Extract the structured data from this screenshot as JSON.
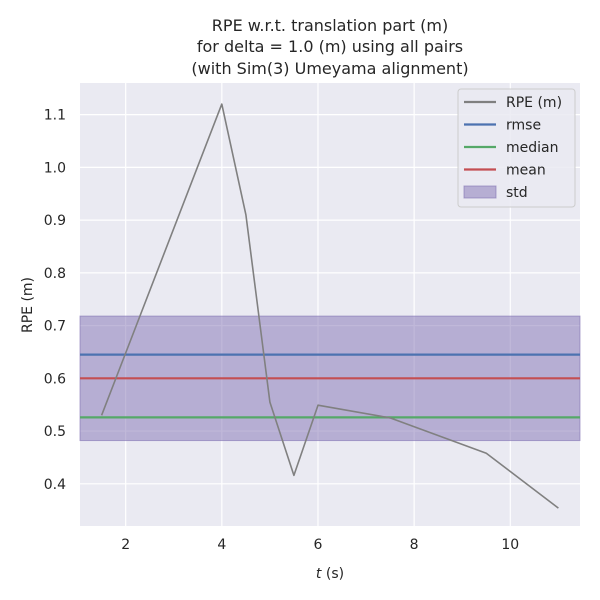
{
  "chart_data": {
    "type": "line",
    "title_lines": [
      "RPE w.r.t. translation part (m)",
      "for delta = 1.0 (m) using all pairs",
      "(with Sim(3) Umeyama alignment)"
    ],
    "xlabel_italic": "t",
    "xlabel_rest": " (s)",
    "ylabel": "RPE (m)",
    "xlim": [
      1.05,
      11.45
    ],
    "ylim": [
      0.32,
      1.16
    ],
    "xticks": [
      2,
      4,
      6,
      8,
      10
    ],
    "yticks": [
      0.4,
      0.5,
      0.6,
      0.7,
      0.8,
      0.9,
      1.0,
      1.1
    ],
    "ytick_labels": [
      "0.4",
      "0.5",
      "0.6",
      "0.7",
      "0.8",
      "0.9",
      "1.0",
      "1.1"
    ],
    "grid": true,
    "legend_position": "top-right",
    "series": [
      {
        "name": "RPE (m)",
        "color": "#808080",
        "x": [
          1.5,
          4.0,
          4.5,
          5.0,
          5.5,
          6.0,
          7.5,
          9.5,
          11.0
        ],
        "y": [
          0.53,
          1.12,
          0.91,
          0.555,
          0.416,
          0.549,
          0.525,
          0.458,
          0.354
        ]
      }
    ],
    "stats": {
      "rmse": 0.645,
      "median": 0.526,
      "mean": 0.6,
      "std_band": [
        0.482,
        0.718
      ]
    },
    "legend": [
      {
        "label": "RPE (m)",
        "kind": "line",
        "color": "#808080"
      },
      {
        "label": "rmse",
        "kind": "line",
        "color": "#4c72b0"
      },
      {
        "label": "median",
        "kind": "line",
        "color": "#55a868"
      },
      {
        "label": "mean",
        "kind": "line",
        "color": "#c44e52"
      },
      {
        "label": "std",
        "kind": "patch",
        "color": "#8172b3"
      }
    ],
    "colors": {
      "background": "#eaeaf2",
      "grid": "#ffffff",
      "rmse": "#4c72b0",
      "median": "#55a868",
      "mean": "#c44e52",
      "std": "#8172b3"
    }
  }
}
